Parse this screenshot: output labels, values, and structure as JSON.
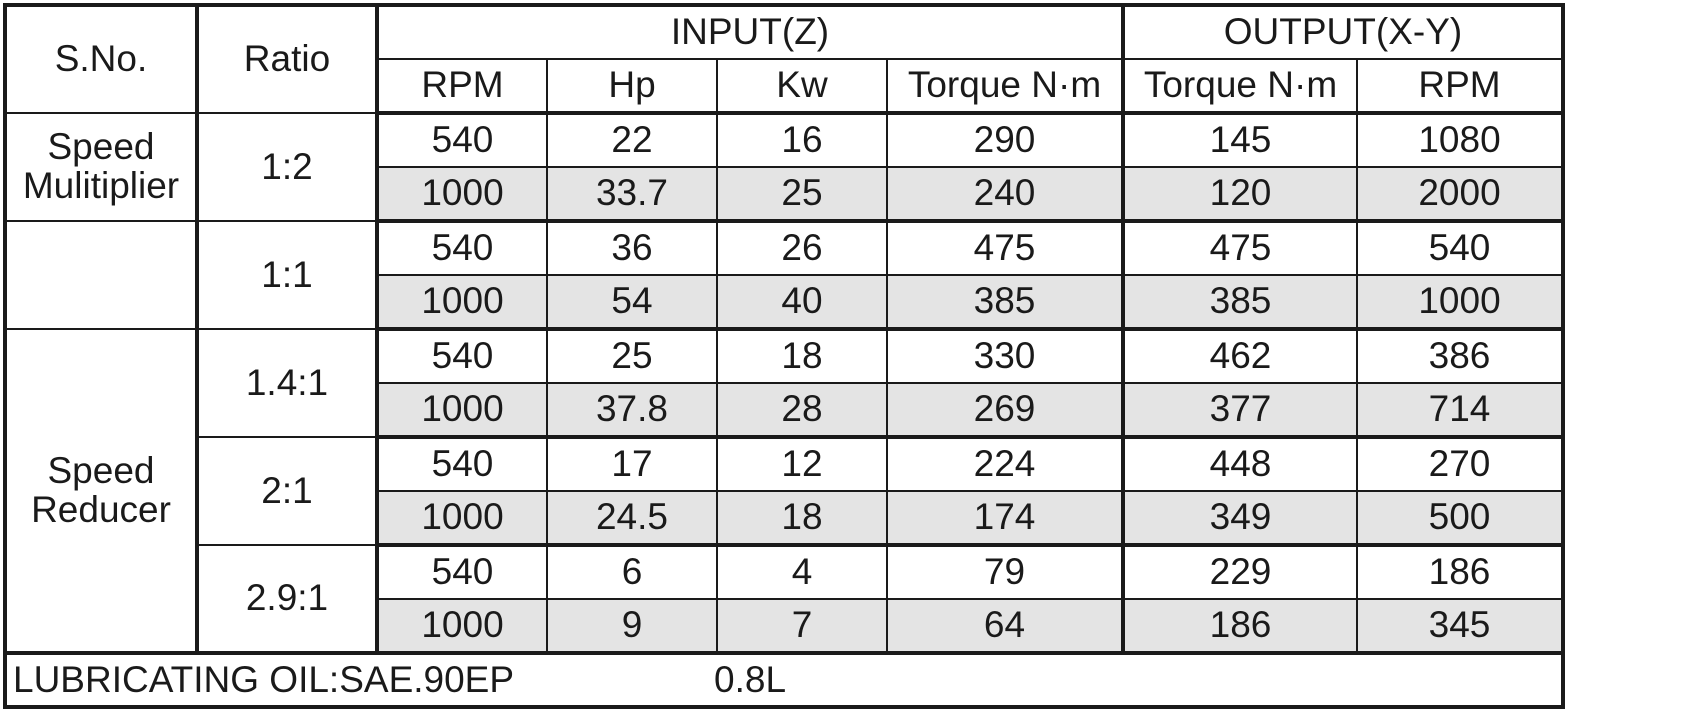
{
  "headers": {
    "sno": "S.No.",
    "ratio": "Ratio",
    "input": "INPUT(Z)",
    "output": "OUTPUT(X-Y)",
    "input_cols": [
      "RPM",
      "Hp",
      "Kw",
      "Torque N·m"
    ],
    "output_cols": [
      "Torque N·m",
      "RPM"
    ]
  },
  "groups": [
    {
      "label_lines": [
        "Speed",
        "Mulitiplier"
      ],
      "ratio": "1:2",
      "rows": [
        [
          "540",
          "22",
          "16",
          "290",
          "145",
          "1080"
        ],
        [
          "1000",
          "33.7",
          "25",
          "240",
          "120",
          "2000"
        ]
      ]
    },
    {
      "label_lines": [
        "",
        ""
      ],
      "ratio": "1:1",
      "rows": [
        [
          "540",
          "36",
          "26",
          "475",
          "475",
          "540"
        ],
        [
          "1000",
          "54",
          "40",
          "385",
          "385",
          "1000"
        ]
      ]
    },
    {
      "label_lines": [
        "Speed",
        "Reducer"
      ],
      "ratio": "1.4:1",
      "rows": [
        [
          "540",
          "25",
          "18",
          "330",
          "462",
          "386"
        ],
        [
          "1000",
          "37.8",
          "28",
          "269",
          "377",
          "714"
        ]
      ]
    },
    {
      "label_lines": [
        "",
        ""
      ],
      "ratio": "2:1",
      "rows": [
        [
          "540",
          "17",
          "12",
          "224",
          "448",
          "270"
        ],
        [
          "1000",
          "24.5",
          "18",
          "174",
          "349",
          "500"
        ]
      ]
    },
    {
      "label_lines": [
        "",
        ""
      ],
      "ratio": "2.9:1",
      "rows": [
        [
          "540",
          "6",
          "4",
          "79",
          "229",
          "186"
        ],
        [
          "1000",
          "9",
          "7",
          "64",
          "186",
          "345"
        ]
      ]
    }
  ],
  "footer": {
    "label": "LUBRICATING OIL:SAE.90EP",
    "amount": "0.8L"
  }
}
